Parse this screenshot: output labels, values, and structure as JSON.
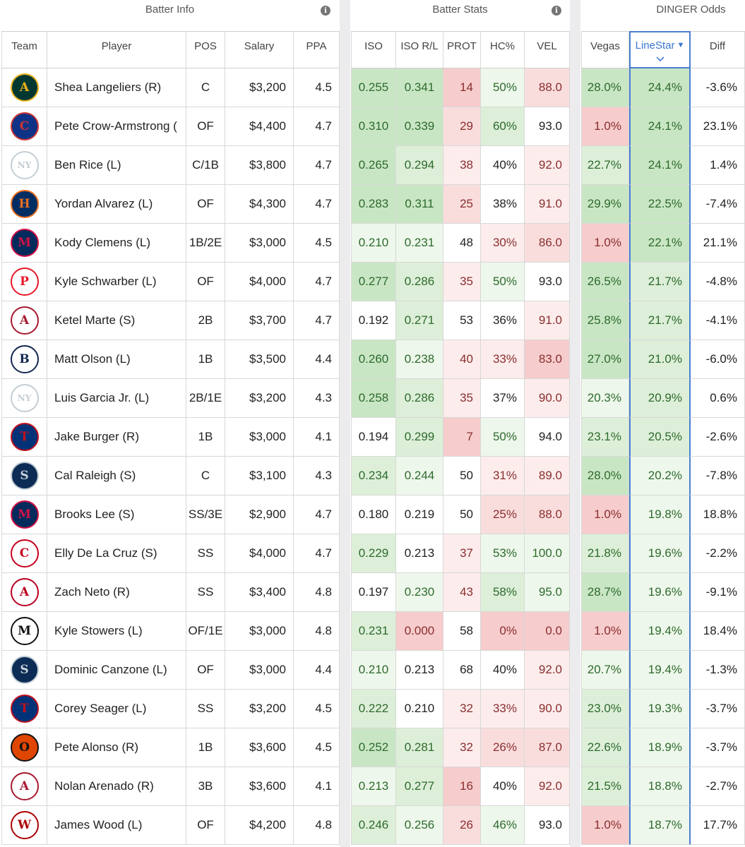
{
  "groups": {
    "batter_info": "Batter Info",
    "batter_stats": "Batter Stats",
    "dinger_odds": "DINGER Odds"
  },
  "columns": {
    "team": "Team",
    "player": "Player",
    "pos": "POS",
    "salary": "Salary",
    "ppa": "PPA",
    "iso": "ISO",
    "iso_rl": "ISO R/L",
    "prot": "PROT",
    "hc": "HC%",
    "vel": "VEL",
    "vegas": "Vegas",
    "linestar": "LineStar",
    "diff": "Diff"
  },
  "sort": {
    "column": "LineStar",
    "direction": "descending"
  },
  "rows": [
    {
      "team": "OAK",
      "player": "Shea Langeliers (R)",
      "pos": "C",
      "salary": "$3,200",
      "ppa": "4.5",
      "iso": "0.255",
      "iso_rl": "0.341",
      "prot": "14",
      "hc": "50%",
      "vel": "88.0",
      "vegas": "28.0%",
      "linestar": "24.4%",
      "diff": "-3.6%"
    },
    {
      "team": "CHC",
      "player": "Pete Crow-Armstrong (",
      "pos": "OF",
      "salary": "$4,400",
      "ppa": "4.7",
      "iso": "0.310",
      "iso_rl": "0.339",
      "prot": "29",
      "hc": "60%",
      "vel": "93.0",
      "vegas": "1.0%",
      "linestar": "24.1%",
      "diff": "23.1%"
    },
    {
      "team": "NYY",
      "player": "Ben Rice (L)",
      "pos": "C/1B",
      "salary": "$3,800",
      "ppa": "4.7",
      "iso": "0.265",
      "iso_rl": "0.294",
      "prot": "38",
      "hc": "40%",
      "vel": "92.0",
      "vegas": "22.7%",
      "linestar": "24.1%",
      "diff": "1.4%"
    },
    {
      "team": "HOU",
      "player": "Yordan Alvarez (L)",
      "pos": "OF",
      "salary": "$4,300",
      "ppa": "4.7",
      "iso": "0.283",
      "iso_rl": "0.311",
      "prot": "25",
      "hc": "38%",
      "vel": "91.0",
      "vegas": "29.9%",
      "linestar": "22.5%",
      "diff": "-7.4%"
    },
    {
      "team": "MIN",
      "player": "Kody Clemens (L)",
      "pos": "1B/2E",
      "salary": "$3,000",
      "ppa": "4.5",
      "iso": "0.210",
      "iso_rl": "0.231",
      "prot": "48",
      "hc": "30%",
      "vel": "86.0",
      "vegas": "1.0%",
      "linestar": "22.1%",
      "diff": "21.1%"
    },
    {
      "team": "PHI",
      "player": "Kyle Schwarber (L)",
      "pos": "OF",
      "salary": "$4,000",
      "ppa": "4.7",
      "iso": "0.277",
      "iso_rl": "0.286",
      "prot": "35",
      "hc": "50%",
      "vel": "93.0",
      "vegas": "26.5%",
      "linestar": "21.7%",
      "diff": "-4.8%"
    },
    {
      "team": "ARI",
      "player": "Ketel Marte (S)",
      "pos": "2B",
      "salary": "$3,700",
      "ppa": "4.7",
      "iso": "0.192",
      "iso_rl": "0.271",
      "prot": "53",
      "hc": "36%",
      "vel": "91.0",
      "vegas": "25.8%",
      "linestar": "21.7%",
      "diff": "-4.1%"
    },
    {
      "team": "ATL",
      "player": "Matt Olson (L)",
      "pos": "1B",
      "salary": "$3,500",
      "ppa": "4.4",
      "iso": "0.260",
      "iso_rl": "0.238",
      "prot": "40",
      "hc": "33%",
      "vel": "83.0",
      "vegas": "27.0%",
      "linestar": "21.0%",
      "diff": "-6.0%"
    },
    {
      "team": "NYY",
      "player": "Luis Garcia Jr. (L)",
      "pos": "2B/1E",
      "salary": "$3,200",
      "ppa": "4.3",
      "iso": "0.258",
      "iso_rl": "0.286",
      "prot": "35",
      "hc": "37%",
      "vel": "90.0",
      "vegas": "20.3%",
      "linestar": "20.9%",
      "diff": "0.6%"
    },
    {
      "team": "TEX",
      "player": "Jake Burger (R)",
      "pos": "1B",
      "salary": "$3,000",
      "ppa": "4.1",
      "iso": "0.194",
      "iso_rl": "0.299",
      "prot": "7",
      "hc": "50%",
      "vel": "94.0",
      "vegas": "23.1%",
      "linestar": "20.5%",
      "diff": "-2.6%"
    },
    {
      "team": "SEA",
      "player": "Cal Raleigh (S)",
      "pos": "C",
      "salary": "$3,100",
      "ppa": "4.3",
      "iso": "0.234",
      "iso_rl": "0.244",
      "prot": "50",
      "hc": "31%",
      "vel": "89.0",
      "vegas": "28.0%",
      "linestar": "20.2%",
      "diff": "-7.8%"
    },
    {
      "team": "MIN",
      "player": "Brooks Lee (S)",
      "pos": "SS/3E",
      "salary": "$2,900",
      "ppa": "4.7",
      "iso": "0.180",
      "iso_rl": "0.219",
      "prot": "50",
      "hc": "25%",
      "vel": "88.0",
      "vegas": "1.0%",
      "linestar": "19.8%",
      "diff": "18.8%"
    },
    {
      "team": "CIN",
      "player": "Elly De La Cruz (S)",
      "pos": "SS",
      "salary": "$4,000",
      "ppa": "4.7",
      "iso": "0.229",
      "iso_rl": "0.213",
      "prot": "37",
      "hc": "53%",
      "vel": "100.0",
      "vegas": "21.8%",
      "linestar": "19.6%",
      "diff": "-2.2%"
    },
    {
      "team": "LAA",
      "player": "Zach Neto (R)",
      "pos": "SS",
      "salary": "$3,400",
      "ppa": "4.8",
      "iso": "0.197",
      "iso_rl": "0.230",
      "prot": "43",
      "hc": "58%",
      "vel": "95.0",
      "vegas": "28.7%",
      "linestar": "19.6%",
      "diff": "-9.1%"
    },
    {
      "team": "MIA",
      "player": "Kyle Stowers (L)",
      "pos": "OF/1E",
      "salary": "$3,000",
      "ppa": "4.8",
      "iso": "0.231",
      "iso_rl": "0.000",
      "prot": "58",
      "hc": "0%",
      "vel": "0.0",
      "vegas": "1.0%",
      "linestar": "19.4%",
      "diff": "18.4%"
    },
    {
      "team": "SEA",
      "player": "Dominic Canzone (L)",
      "pos": "OF",
      "salary": "$3,000",
      "ppa": "4.4",
      "iso": "0.210",
      "iso_rl": "0.213",
      "prot": "68",
      "hc": "40%",
      "vel": "92.0",
      "vegas": "20.7%",
      "linestar": "19.4%",
      "diff": "-1.3%"
    },
    {
      "team": "TEX",
      "player": "Corey Seager (L)",
      "pos": "SS",
      "salary": "$3,200",
      "ppa": "4.5",
      "iso": "0.222",
      "iso_rl": "0.210",
      "prot": "32",
      "hc": "33%",
      "vel": "90.0",
      "vegas": "23.0%",
      "linestar": "19.3%",
      "diff": "-3.7%"
    },
    {
      "team": "BAL",
      "player": "Pete Alonso (R)",
      "pos": "1B",
      "salary": "$3,600",
      "ppa": "4.5",
      "iso": "0.252",
      "iso_rl": "0.281",
      "prot": "32",
      "hc": "26%",
      "vel": "87.0",
      "vegas": "22.6%",
      "linestar": "18.9%",
      "diff": "-3.7%"
    },
    {
      "team": "ARI",
      "player": "Nolan Arenado (R)",
      "pos": "3B",
      "salary": "$3,600",
      "ppa": "4.1",
      "iso": "0.213",
      "iso_rl": "0.277",
      "prot": "16",
      "hc": "40%",
      "vel": "92.0",
      "vegas": "21.5%",
      "linestar": "18.8%",
      "diff": "-2.7%"
    },
    {
      "team": "WSH",
      "player": "James Wood (L)",
      "pos": "OF",
      "salary": "$4,200",
      "ppa": "4.8",
      "iso": "0.246",
      "iso_rl": "0.256",
      "prot": "26",
      "hc": "46%",
      "vel": "93.0",
      "vegas": "1.0%",
      "linestar": "18.7%",
      "diff": "17.7%"
    }
  ],
  "team_logos": {
    "OAK": {
      "bg": "#003831",
      "fg": "#efb21e",
      "text": "A"
    },
    "CHC": {
      "bg": "#0e3386",
      "fg": "#cc3433",
      "text": "C"
    },
    "NYY": {
      "bg": "#ffffff",
      "fg": "#c4ced4",
      "text": "NY"
    },
    "HOU": {
      "bg": "#002d62",
      "fg": "#eb6e1f",
      "text": "H"
    },
    "MIN": {
      "bg": "#002b5c",
      "fg": "#d31145",
      "text": "M"
    },
    "PHI": {
      "bg": "#ffffff",
      "fg": "#e81828",
      "text": "P"
    },
    "ARI": {
      "bg": "#ffffff",
      "fg": "#a71930",
      "text": "A"
    },
    "ATL": {
      "bg": "#ffffff",
      "fg": "#13274f",
      "text": "B"
    },
    "TEX": {
      "bg": "#003278",
      "fg": "#c0111f",
      "text": "T"
    },
    "SEA": {
      "bg": "#0c2c56",
      "fg": "#c4ced4",
      "text": "S"
    },
    "CIN": {
      "bg": "#ffffff",
      "fg": "#c6011f",
      "text": "C"
    },
    "LAA": {
      "bg": "#ffffff",
      "fg": "#ba0021",
      "text": "A"
    },
    "MIA": {
      "bg": "#ffffff",
      "fg": "#111111",
      "text": "M"
    },
    "BAL": {
      "bg": "#df4601",
      "fg": "#111111",
      "text": "O"
    },
    "WSH": {
      "bg": "#ffffff",
      "fg": "#ab0003",
      "text": "W"
    }
  },
  "colors": {
    "green_strong": "#c9e6c4",
    "green_mid": "#ddefd8",
    "green_light": "#eef7eb",
    "red_strong": "#f6cccc",
    "red_mid": "#f9dddd",
    "red_light": "#fcecec",
    "sort_accent": "#3a76cf",
    "gap": "#ececee"
  }
}
